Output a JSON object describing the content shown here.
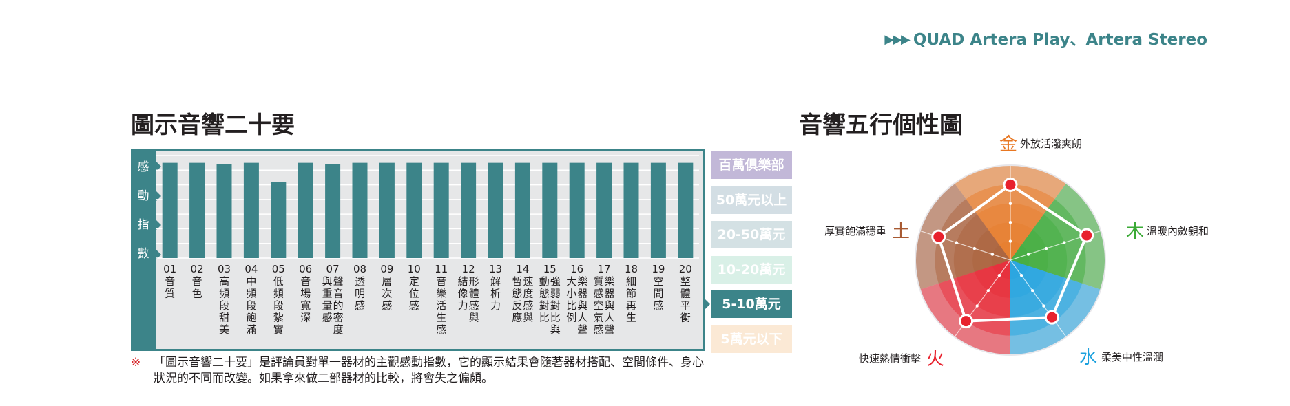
{
  "header": {
    "arrows": "▶▶▶",
    "title": "QUAD Artera Play、Artera Stereo"
  },
  "section_left": {
    "title": "圖示音響二十要"
  },
  "section_right": {
    "title": "音響五行個性圖"
  },
  "colors": {
    "teal": "#3c8489",
    "grid_bg": "#e6e7e8",
    "red_mark": "#d6262a"
  },
  "chart_data": [
    {
      "type": "bar",
      "ylabel": "感動指數",
      "categories": [
        {
          "num": "01",
          "label": "音質"
        },
        {
          "num": "02",
          "label": "音色"
        },
        {
          "num": "03",
          "label": "高頻段甜美"
        },
        {
          "num": "04",
          "label": "中頻段飽滿"
        },
        {
          "num": "05",
          "label": "低頻段紮實"
        },
        {
          "num": "06",
          "label": "音場寬深"
        },
        {
          "num": "07",
          "label": "聲音的密度與重量感"
        },
        {
          "num": "08",
          "label": "透明感"
        },
        {
          "num": "09",
          "label": "層次感"
        },
        {
          "num": "10",
          "label": "定位感"
        },
        {
          "num": "11",
          "label": "音樂活生感"
        },
        {
          "num": "12",
          "label": "形體感與結像力"
        },
        {
          "num": "13",
          "label": "解析力"
        },
        {
          "num": "14",
          "label": "速度感與暫態反應"
        },
        {
          "num": "15",
          "label": "強弱對比與動態對比"
        },
        {
          "num": "16",
          "label": "樂器與人聲大小比例"
        },
        {
          "num": "17",
          "label": "樂器與人聲質感空氣感"
        },
        {
          "num": "18",
          "label": "細節再生"
        },
        {
          "num": "19",
          "label": "空間感"
        },
        {
          "num": "20",
          "label": "整體平衡"
        }
      ],
      "values": [
        3.25,
        3.25,
        3.2,
        3.25,
        2.6,
        3.25,
        3.2,
        3.25,
        3.25,
        3.25,
        3.25,
        3.25,
        3.25,
        3.25,
        3.25,
        3.25,
        3.25,
        3.25,
        3.25,
        3.25
      ],
      "ylim": [
        0,
        3.5
      ],
      "grid": true,
      "price_tiers": [
        {
          "label": "百萬俱樂部",
          "color": "#c2b8d8",
          "active": false
        },
        {
          "label": "50萬元以上",
          "color": "#d3dee4",
          "active": false
        },
        {
          "label": "20-50萬元",
          "color": "#d4e1e4",
          "active": false
        },
        {
          "label": "10-20萬元",
          "color": "#d9f0e7",
          "active": false
        },
        {
          "label": "5-10萬元",
          "color": "#3c8489",
          "active": true
        },
        {
          "label": "5萬元以下",
          "color": "#fbe9d5",
          "active": false
        }
      ]
    },
    {
      "type": "radar",
      "axes": [
        {
          "element": "金",
          "desc": "外放活潑爽朗",
          "color": "#e87722"
        },
        {
          "element": "木",
          "desc": "溫暖內斂親和",
          "color": "#3aaa35"
        },
        {
          "element": "水",
          "desc": "柔美中性溫潤",
          "color": "#1ca1de"
        },
        {
          "element": "火",
          "desc": "快速熱情衝擊",
          "color": "#e8222e"
        },
        {
          "element": "土",
          "desc": "厚實飽滿穩重",
          "color": "#a85a32"
        }
      ],
      "values": [
        0.8,
        0.85,
        0.75,
        0.8,
        0.8
      ],
      "rings": 5
    }
  ],
  "note": {
    "mark": "※",
    "text": "「圖示音響二十要」是評論員對單一器材的主觀感動指數，它的顯示結果會隨著器材搭配、空間條件、身心狀況的不同而改變。如果拿來做二部器材的比較，將會失之偏頗。"
  }
}
